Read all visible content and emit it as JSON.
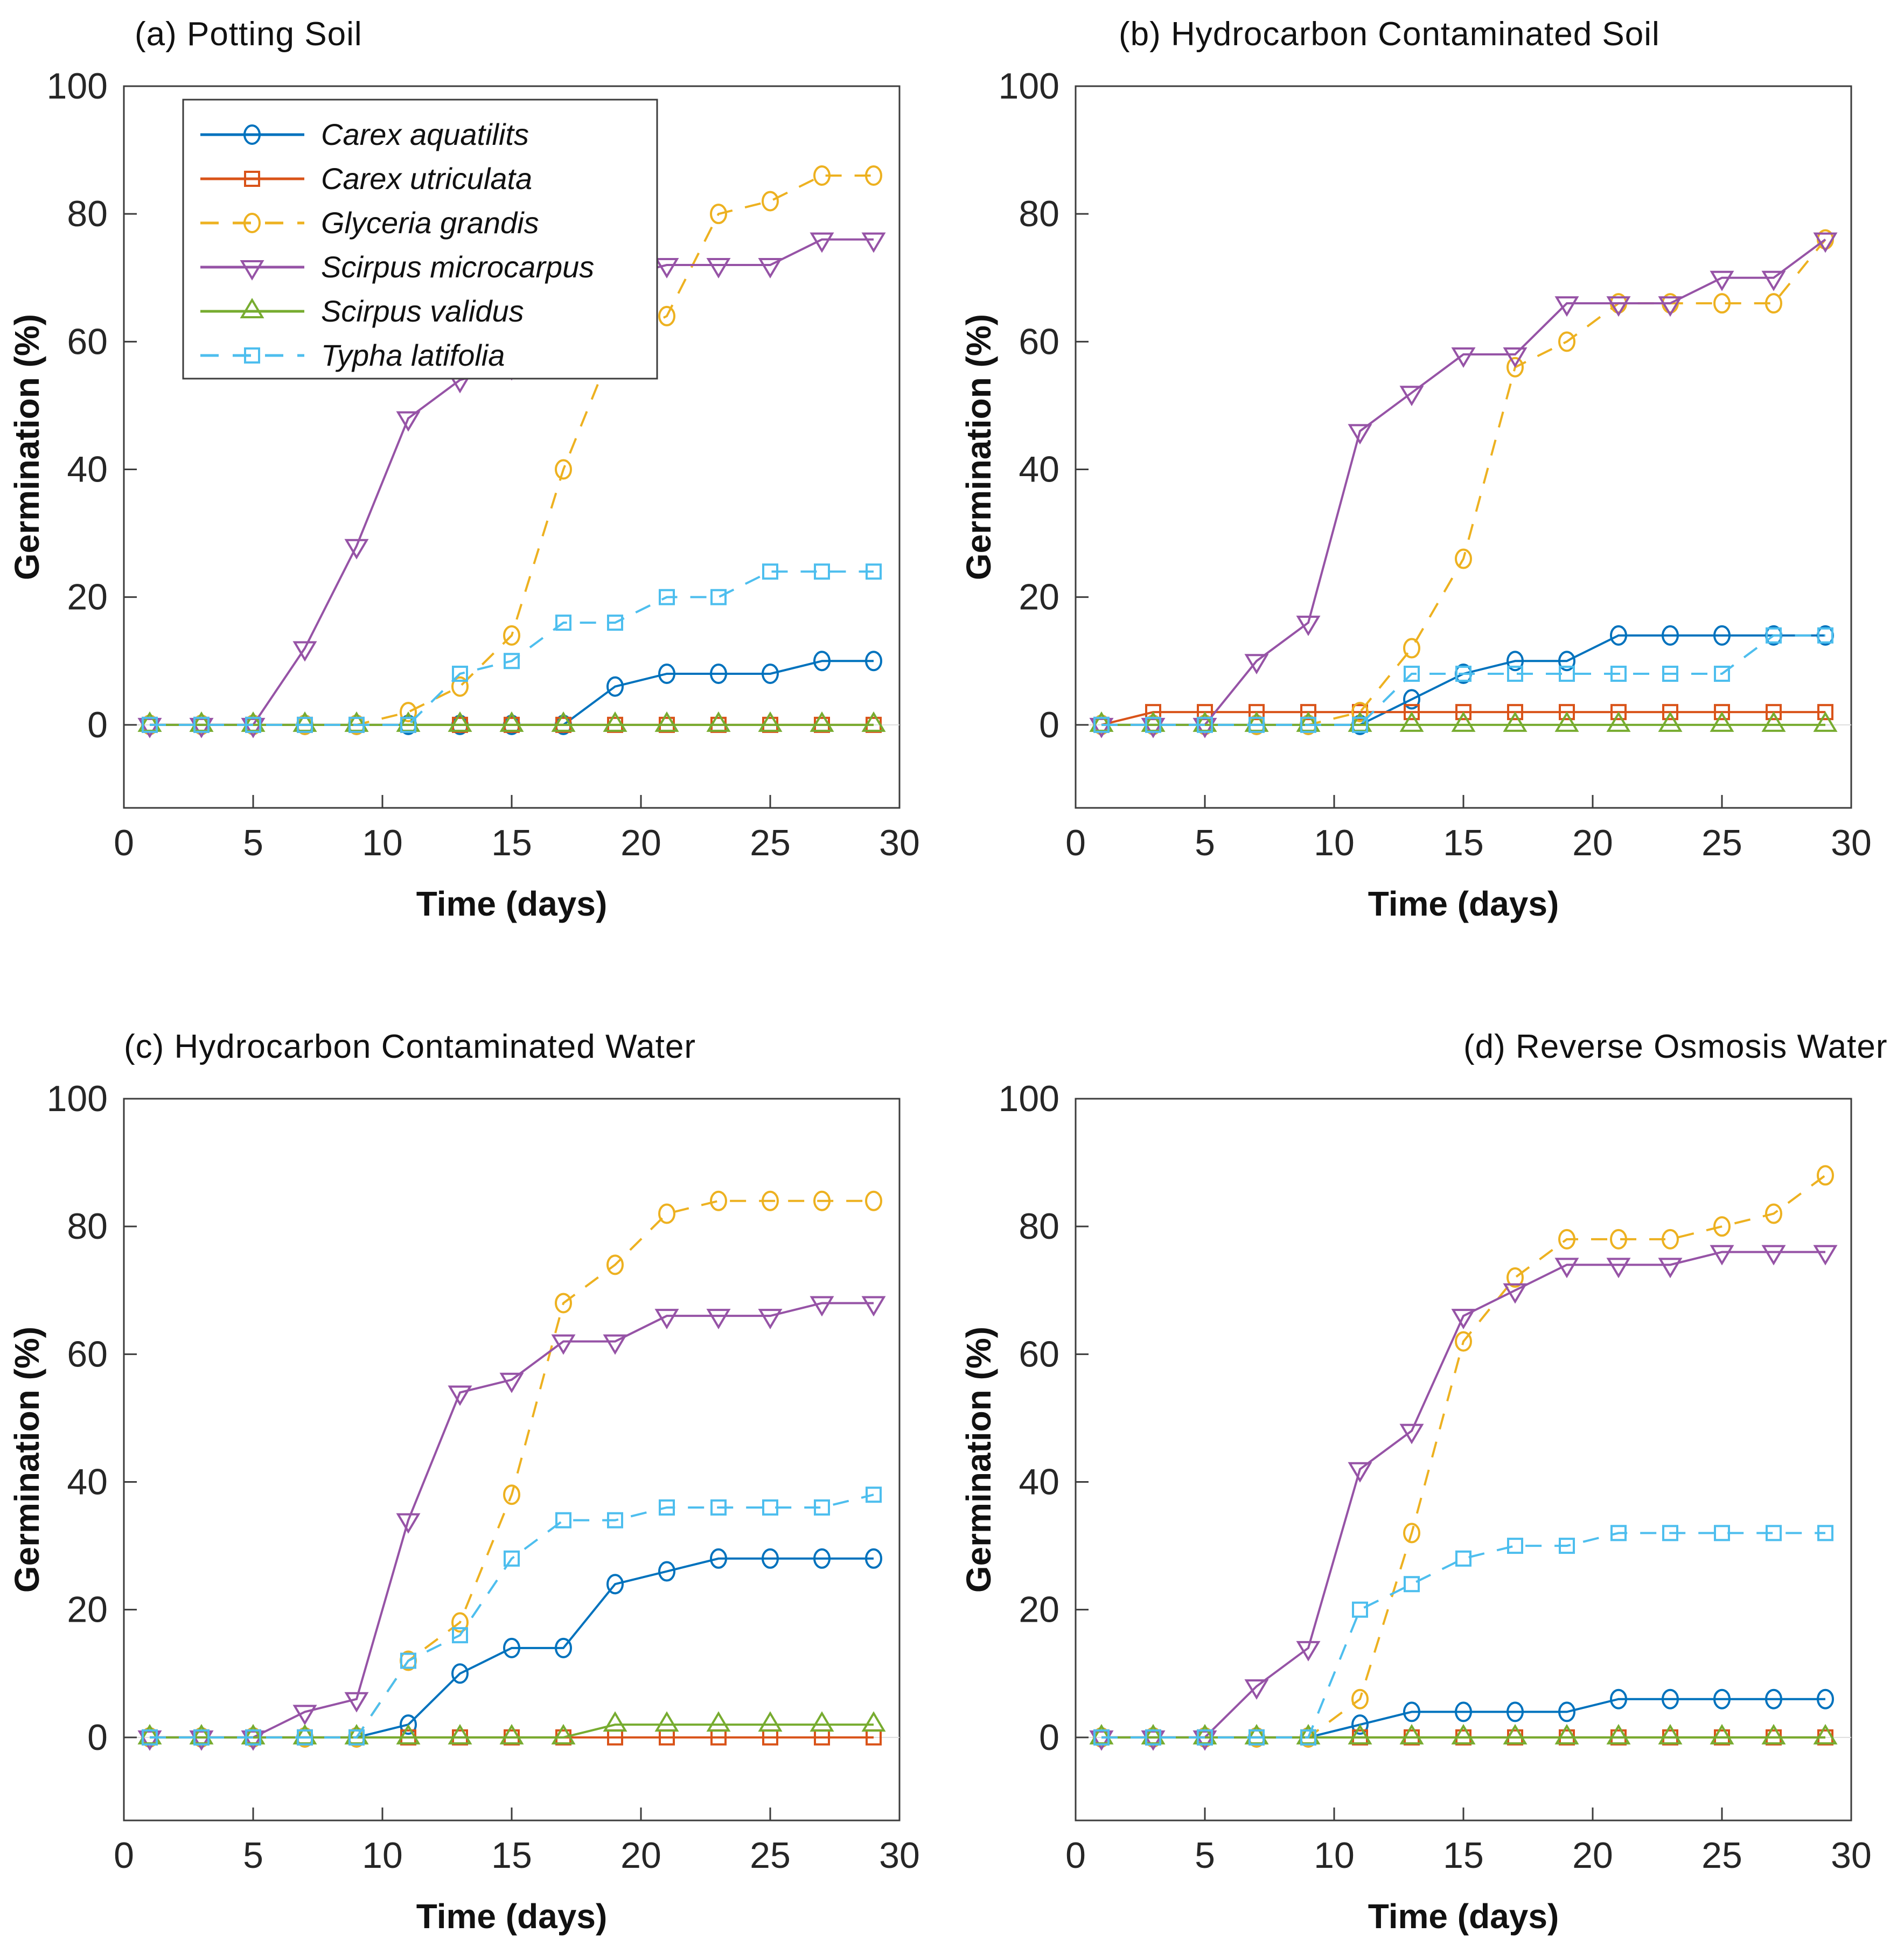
{
  "chart_data": {
    "type": "line",
    "xlabel": "Time (days)",
    "ylabel": "Germination (%)",
    "x": [
      1,
      3,
      5,
      7,
      9,
      11,
      13,
      15,
      17,
      19,
      21,
      23,
      25,
      27,
      29
    ],
    "xlim": [
      0,
      30
    ],
    "ylim": [
      0,
      100
    ],
    "xticks": [
      0,
      5,
      10,
      15,
      20,
      25,
      30
    ],
    "yticks": [
      0,
      20,
      40,
      60,
      80,
      100
    ],
    "grid": "off",
    "legend_panel": "a",
    "legend_position": "top-left-inside",
    "species": [
      {
        "name": "Carex aquatilits",
        "color": "#0072BD",
        "marker": "circle",
        "line": "solid"
      },
      {
        "name": "Carex utriculata",
        "color": "#D95319",
        "marker": "square",
        "line": "solid"
      },
      {
        "name": "Glyceria grandis",
        "color": "#EDB120",
        "marker": "circle",
        "line": "dashed"
      },
      {
        "name": "Scirpus microcarpus",
        "color": "#9653A6",
        "marker": "triangle-down",
        "line": "solid"
      },
      {
        "name": "Scirpus validus",
        "color": "#77AC30",
        "marker": "triangle-up",
        "line": "solid"
      },
      {
        "name": "Typha latifolia",
        "color": "#4DBEEE",
        "marker": "square",
        "line": "dashed"
      }
    ],
    "panels": [
      {
        "id": "a",
        "title": "(a) Potting Soil",
        "series": [
          {
            "name": "Carex aquatilits",
            "values": [
              0,
              0,
              0,
              0,
              0,
              0,
              0,
              0,
              0,
              6,
              8,
              8,
              8,
              10,
              10
            ]
          },
          {
            "name": "Carex utriculata",
            "values": [
              0,
              0,
              0,
              0,
              0,
              0,
              0,
              0,
              0,
              0,
              0,
              0,
              0,
              0,
              0
            ]
          },
          {
            "name": "Glyceria grandis",
            "values": [
              0,
              0,
              0,
              0,
              0,
              2,
              6,
              14,
              40,
              60,
              64,
              80,
              82,
              86,
              86
            ]
          },
          {
            "name": "Scirpus microcarpus",
            "values": [
              0,
              0,
              0,
              12,
              28,
              48,
              54,
              56,
              64,
              70,
              72,
              72,
              72,
              76,
              76
            ]
          },
          {
            "name": "Scirpus validus",
            "values": [
              0,
              0,
              0,
              0,
              0,
              0,
              0,
              0,
              0,
              0,
              0,
              0,
              0,
              0,
              0
            ]
          },
          {
            "name": "Typha latifolia",
            "values": [
              0,
              0,
              0,
              0,
              0,
              0,
              8,
              10,
              16,
              16,
              20,
              20,
              24,
              24,
              24
            ]
          }
        ]
      },
      {
        "id": "b",
        "title": "(b) Hydrocarbon Contaminated Soil",
        "series": [
          {
            "name": "Carex aquatilits",
            "values": [
              0,
              0,
              0,
              0,
              0,
              0,
              4,
              8,
              10,
              10,
              14,
              14,
              14,
              14,
              14
            ]
          },
          {
            "name": "Carex utriculata",
            "values": [
              0,
              2,
              2,
              2,
              2,
              2,
              2,
              2,
              2,
              2,
              2,
              2,
              2,
              2,
              2
            ]
          },
          {
            "name": "Glyceria grandis",
            "values": [
              0,
              0,
              0,
              0,
              0,
              2,
              12,
              26,
              56,
              60,
              66,
              66,
              66,
              66,
              76
            ]
          },
          {
            "name": "Scirpus microcarpus",
            "values": [
              0,
              0,
              0,
              10,
              16,
              46,
              52,
              58,
              58,
              66,
              66,
              66,
              70,
              70,
              76
            ]
          },
          {
            "name": "Scirpus validus",
            "values": [
              0,
              0,
              0,
              0,
              0,
              0,
              0,
              0,
              0,
              0,
              0,
              0,
              0,
              0,
              0
            ]
          },
          {
            "name": "Typha latifolia",
            "values": [
              0,
              0,
              0,
              0,
              0,
              0,
              8,
              8,
              8,
              8,
              8,
              8,
              8,
              14,
              14
            ]
          }
        ]
      },
      {
        "id": "c",
        "title": "(c) Hydrocarbon Contaminated Water",
        "series": [
          {
            "name": "Carex aquatilits",
            "values": [
              0,
              0,
              0,
              0,
              0,
              2,
              10,
              14,
              14,
              24,
              26,
              28,
              28,
              28,
              28
            ]
          },
          {
            "name": "Carex utriculata",
            "values": [
              0,
              0,
              0,
              0,
              0,
              0,
              0,
              0,
              0,
              0,
              0,
              0,
              0,
              0,
              0
            ]
          },
          {
            "name": "Glyceria grandis",
            "values": [
              0,
              0,
              0,
              0,
              0,
              12,
              18,
              38,
              68,
              74,
              82,
              84,
              84,
              84,
              84
            ]
          },
          {
            "name": "Scirpus microcarpus",
            "values": [
              0,
              0,
              0,
              4,
              6,
              34,
              54,
              56,
              62,
              62,
              66,
              66,
              66,
              68,
              68
            ]
          },
          {
            "name": "Scirpus validus",
            "values": [
              0,
              0,
              0,
              0,
              0,
              0,
              0,
              0,
              0,
              2,
              2,
              2,
              2,
              2,
              2
            ]
          },
          {
            "name": "Typha latifolia",
            "values": [
              0,
              0,
              0,
              0,
              0,
              12,
              16,
              28,
              34,
              34,
              36,
              36,
              36,
              36,
              38
            ]
          }
        ]
      },
      {
        "id": "d",
        "title": "(d) Reverse Osmosis Water",
        "series": [
          {
            "name": "Carex aquatilits",
            "values": [
              0,
              0,
              0,
              0,
              0,
              2,
              4,
              4,
              4,
              4,
              6,
              6,
              6,
              6,
              6
            ]
          },
          {
            "name": "Carex utriculata",
            "values": [
              0,
              0,
              0,
              0,
              0,
              0,
              0,
              0,
              0,
              0,
              0,
              0,
              0,
              0,
              0
            ]
          },
          {
            "name": "Glyceria grandis",
            "values": [
              0,
              0,
              0,
              0,
              0,
              6,
              32,
              62,
              72,
              78,
              78,
              78,
              80,
              82,
              88
            ]
          },
          {
            "name": "Scirpus microcarpus",
            "values": [
              0,
              0,
              0,
              8,
              14,
              42,
              48,
              66,
              70,
              74,
              74,
              74,
              76,
              76,
              76
            ]
          },
          {
            "name": "Scirpus validus",
            "values": [
              0,
              0,
              0,
              0,
              0,
              0,
              0,
              0,
              0,
              0,
              0,
              0,
              0,
              0,
              0
            ]
          },
          {
            "name": "Typha latifolia",
            "values": [
              0,
              0,
              0,
              0,
              0,
              20,
              24,
              28,
              30,
              30,
              32,
              32,
              32,
              32,
              32
            ]
          }
        ]
      }
    ]
  }
}
